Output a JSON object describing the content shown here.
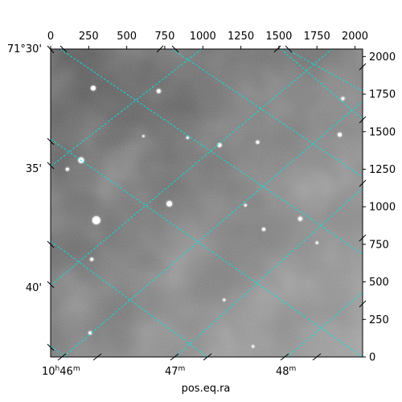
{
  "chart_data": {
    "type": "scatter",
    "image": {
      "pixel_axes": {
        "x_range": [
          0,
          2050
        ],
        "y_range": [
          0,
          2050
        ],
        "x_ticks": [
          0,
          250,
          500,
          750,
          1000,
          1250,
          1500,
          1750,
          2000
        ],
        "y_ticks": [
          0,
          250,
          500,
          750,
          1000,
          1250,
          1500,
          1750,
          2000
        ]
      },
      "colormap": "gray",
      "grid_color": "#00e5e5"
    },
    "xlabel": "pos.eq.ra",
    "ra_ticks": [
      {
        "label_h": "10",
        "label_h_unit": "h",
        "label_m": "46",
        "label_m_unit": "m"
      },
      {
        "label_h": "",
        "label_h_unit": "",
        "label_m": "47",
        "label_m_unit": "m"
      },
      {
        "label_h": "",
        "label_h_unit": "",
        "label_m": "48",
        "label_m_unit": "m"
      }
    ],
    "dec_ticks": [
      "71°30'",
      "35'",
      "40'"
    ],
    "stars": [
      {
        "x": 280,
        "y": 1790,
        "r": 3
      },
      {
        "x": 710,
        "y": 1770,
        "r": 2.5
      },
      {
        "x": 200,
        "y": 1310,
        "r": 3.5
      },
      {
        "x": 110,
        "y": 1250,
        "r": 2
      },
      {
        "x": 1110,
        "y": 1410,
        "r": 2.5
      },
      {
        "x": 1360,
        "y": 1430,
        "r": 2
      },
      {
        "x": 1900,
        "y": 1480,
        "r": 2.5
      },
      {
        "x": 1920,
        "y": 1720,
        "r": 2
      },
      {
        "x": 780,
        "y": 1020,
        "r": 3.5
      },
      {
        "x": 300,
        "y": 910,
        "r": 5
      },
      {
        "x": 1640,
        "y": 920,
        "r": 2.5
      },
      {
        "x": 1400,
        "y": 850,
        "r": 2
      },
      {
        "x": 1750,
        "y": 760,
        "r": 1.5
      },
      {
        "x": 270,
        "y": 650,
        "r": 2
      },
      {
        "x": 1140,
        "y": 380,
        "r": 1.5
      },
      {
        "x": 260,
        "y": 160,
        "r": 2
      },
      {
        "x": 1330,
        "y": 70,
        "r": 1.5
      },
      {
        "x": 900,
        "y": 1460,
        "r": 1.5
      },
      {
        "x": 610,
        "y": 1470,
        "r": 1.2
      },
      {
        "x": 1280,
        "y": 1010,
        "r": 1.5
      }
    ]
  }
}
